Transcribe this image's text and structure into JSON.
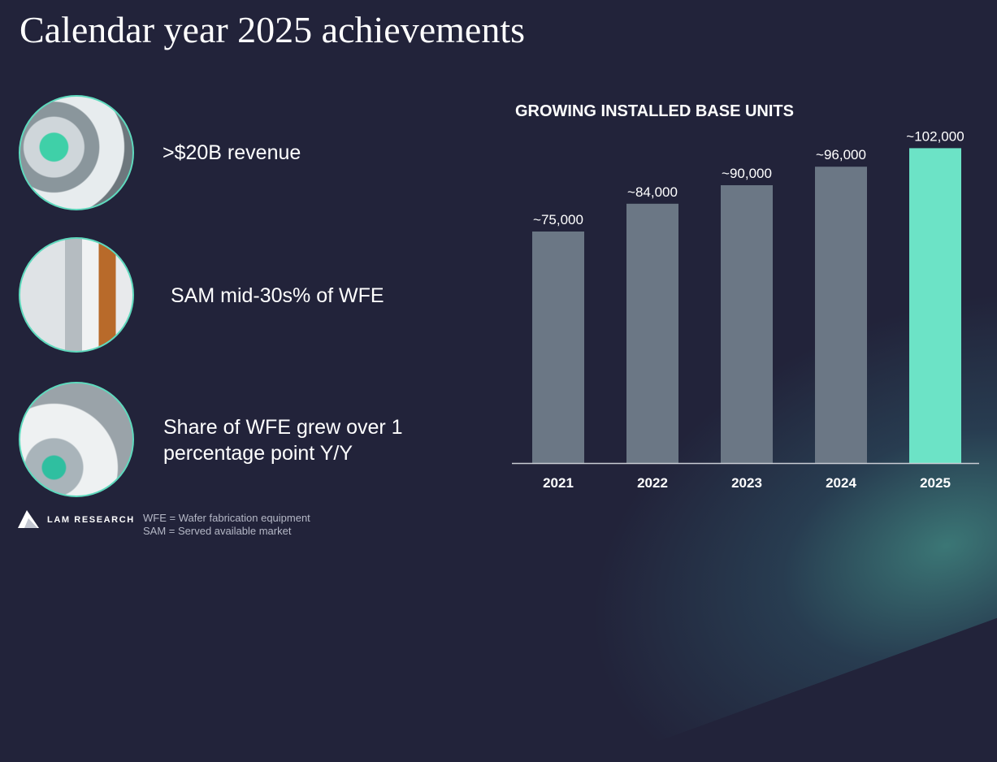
{
  "slide": {
    "title": "Calendar year 2025 achievements",
    "achievements": [
      {
        "text": ">$20B revenue"
      },
      {
        "text": "SAM mid-30s% of WFE"
      },
      {
        "text": "Share of WFE grew over 1 percentage point Y/Y"
      }
    ],
    "footnotes": [
      "WFE = Wafer fabrication equipment",
      "SAM = Served available market"
    ],
    "logo_text": "LAM RESEARCH"
  },
  "chart_data": {
    "type": "bar",
    "title": "GROWING INSTALLED BASE UNITS",
    "categories": [
      "2021",
      "2022",
      "2023",
      "2024",
      "2025"
    ],
    "values": [
      75000,
      84000,
      90000,
      96000,
      102000
    ],
    "data_labels": [
      "~75,000",
      "~84,000",
      "~90,000",
      "~96,000",
      "~102,000"
    ],
    "ylim": [
      0,
      105000
    ],
    "grid": false,
    "colors": {
      "default": "#6b7785",
      "highlight": "#6ce3c6"
    },
    "highlight_index": 4
  }
}
